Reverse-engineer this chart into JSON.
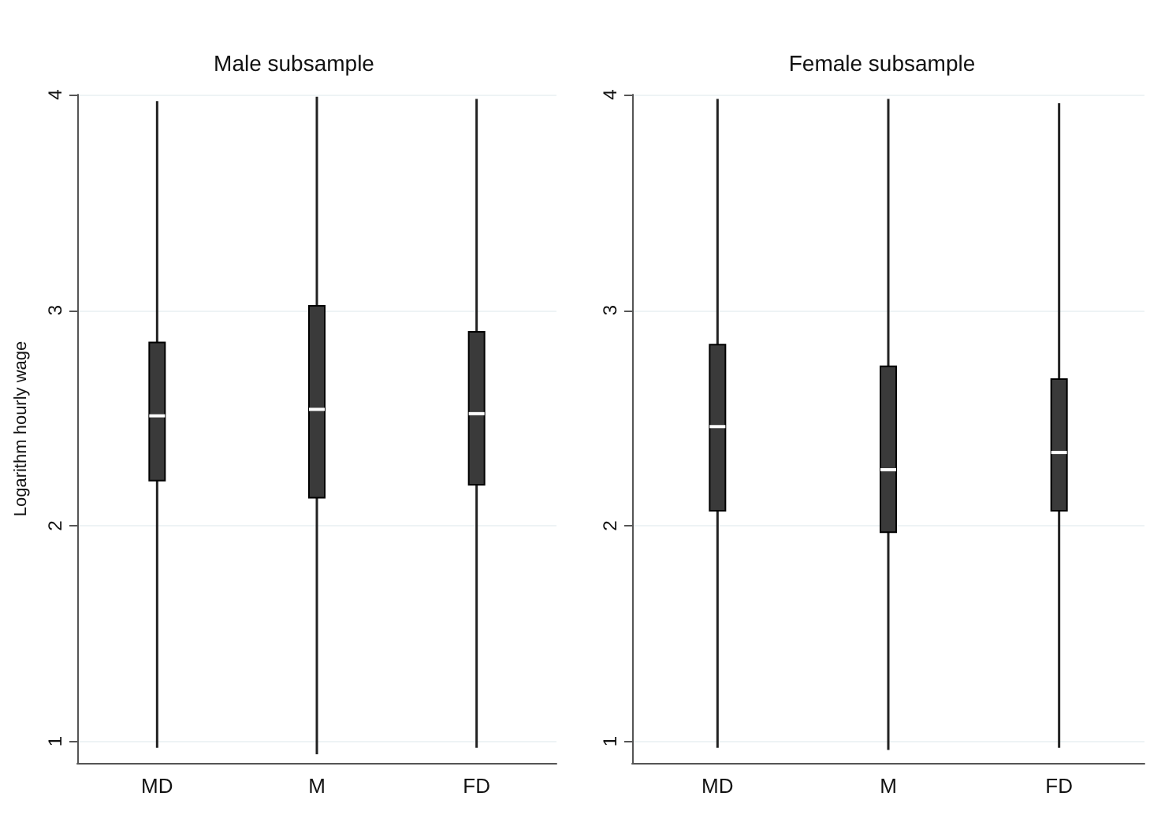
{
  "chart_data": [
    {
      "type": "box",
      "title": "Male subsample",
      "ylabel": "Logarithm hourly wage",
      "categories": [
        "MD",
        "M",
        "FD"
      ],
      "ylim": [
        0.9,
        4
      ],
      "yticks": [
        1,
        2,
        3,
        4
      ],
      "grid": "y",
      "colors": [
        "#3a3a3a",
        "#3a3a3a",
        "#3a3a3a"
      ],
      "boxes": [
        {
          "low": 0.97,
          "q1": 2.21,
          "median": 2.51,
          "q3": 2.85,
          "high": 3.97
        },
        {
          "low": 0.94,
          "q1": 2.13,
          "median": 2.54,
          "q3": 3.02,
          "high": 3.99
        },
        {
          "low": 0.97,
          "q1": 2.19,
          "median": 2.52,
          "q3": 2.9,
          "high": 3.98
        }
      ]
    },
    {
      "type": "box",
      "title": "Female subsample",
      "categories": [
        "MD",
        "M",
        "FD"
      ],
      "ylim": [
        0.9,
        4
      ],
      "yticks": [
        1,
        2,
        3,
        4
      ],
      "grid": "y",
      "colors": [
        "#3a3a3a",
        "#3a3a3a",
        "#3a3a3a"
      ],
      "boxes": [
        {
          "low": 0.97,
          "q1": 2.07,
          "median": 2.46,
          "q3": 2.84,
          "high": 3.98
        },
        {
          "low": 0.96,
          "q1": 1.97,
          "median": 2.26,
          "q3": 2.74,
          "high": 3.98
        },
        {
          "low": 0.97,
          "q1": 2.07,
          "median": 2.34,
          "q3": 2.68,
          "high": 3.96
        }
      ]
    }
  ]
}
